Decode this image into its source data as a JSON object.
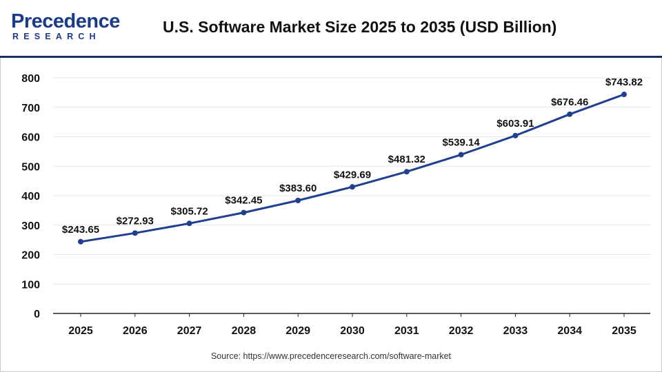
{
  "brand": {
    "logo_main": "Precedence",
    "logo_sub": "RESEARCH"
  },
  "source_text": "Source: https://www.precedenceresearch.com/software-market",
  "colors": {
    "line": "#1f3f8f",
    "marker": "#1f3f8f",
    "grid": "#e6e6e6",
    "axis": "#222222",
    "header_rule": "#1b2f66",
    "logo": "#1a3a8a"
  },
  "chart_data": {
    "type": "line",
    "title": "U.S. Software Market Size 2025 to 2035 (USD Billion)",
    "xlabel": "",
    "ylabel": "",
    "categories": [
      "2025",
      "2026",
      "2027",
      "2028",
      "2029",
      "2030",
      "2031",
      "2032",
      "2033",
      "2034",
      "2035"
    ],
    "series": [
      {
        "values": [
          243.65,
          272.93,
          305.72,
          342.45,
          383.6,
          429.69,
          481.32,
          539.14,
          603.91,
          676.46,
          743.82
        ],
        "labels": [
          "$243.65",
          "$272.93",
          "$305.72",
          "$342.45",
          "$383.60",
          "$429.69",
          "$481.32",
          "$539.14",
          "$603.91",
          "$676.46",
          "$743.82"
        ]
      }
    ],
    "ylim": [
      0,
      800
    ],
    "yticks": [
      0,
      100,
      200,
      300,
      400,
      500,
      600,
      700,
      800
    ],
    "grid": true,
    "legend": "none"
  }
}
